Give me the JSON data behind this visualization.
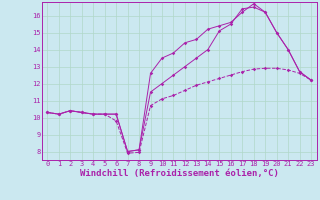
{
  "background_color": "#cbe8f0",
  "grid_color": "#b0d8c8",
  "line_color": "#aa22aa",
  "spine_color": "#993399",
  "xlim": [
    -0.5,
    23.5
  ],
  "ylim": [
    7.5,
    16.8
  ],
  "xticks": [
    0,
    1,
    2,
    3,
    4,
    5,
    6,
    7,
    8,
    9,
    10,
    11,
    12,
    13,
    14,
    15,
    16,
    17,
    18,
    19,
    20,
    21,
    22,
    23
  ],
  "yticks": [
    8,
    9,
    10,
    11,
    12,
    13,
    14,
    15,
    16
  ],
  "xlabel": "Windchill (Refroidissement éolien,°C)",
  "tick_fontsize": 5.0,
  "xlabel_fontsize": 6.5,
  "line1_x": [
    0,
    1,
    2,
    3,
    4,
    5,
    6,
    7,
    8,
    9,
    10,
    11,
    12,
    13,
    14,
    15,
    16,
    17,
    18,
    19,
    20,
    21,
    22,
    23
  ],
  "line1_y": [
    10.3,
    10.2,
    10.4,
    10.3,
    10.2,
    10.2,
    9.8,
    7.9,
    7.95,
    10.7,
    11.1,
    11.3,
    11.6,
    11.9,
    12.1,
    12.3,
    12.5,
    12.7,
    12.85,
    12.9,
    12.9,
    12.8,
    12.6,
    12.2
  ],
  "line2_x": [
    0,
    1,
    2,
    3,
    4,
    5,
    6,
    7,
    8,
    9,
    10,
    11,
    12,
    13,
    14,
    15,
    16,
    17,
    18,
    19,
    20,
    21,
    22,
    23
  ],
  "line2_y": [
    10.3,
    10.2,
    10.4,
    10.3,
    10.2,
    10.2,
    10.2,
    8.0,
    8.1,
    12.6,
    13.5,
    13.8,
    14.4,
    14.6,
    15.2,
    15.4,
    15.6,
    16.2,
    16.7,
    16.2,
    15.0,
    14.0,
    12.7,
    12.2
  ],
  "line3_x": [
    0,
    1,
    2,
    3,
    4,
    5,
    6,
    7,
    8,
    9,
    10,
    11,
    12,
    13,
    14,
    15,
    16,
    17,
    18,
    19,
    20,
    21,
    22,
    23
  ],
  "line3_y": [
    10.3,
    10.2,
    10.4,
    10.3,
    10.2,
    10.2,
    10.2,
    8.0,
    8.1,
    11.5,
    12.0,
    12.5,
    13.0,
    13.5,
    14.0,
    15.1,
    15.5,
    16.4,
    16.5,
    16.2,
    15.0,
    14.0,
    12.7,
    12.2
  ]
}
